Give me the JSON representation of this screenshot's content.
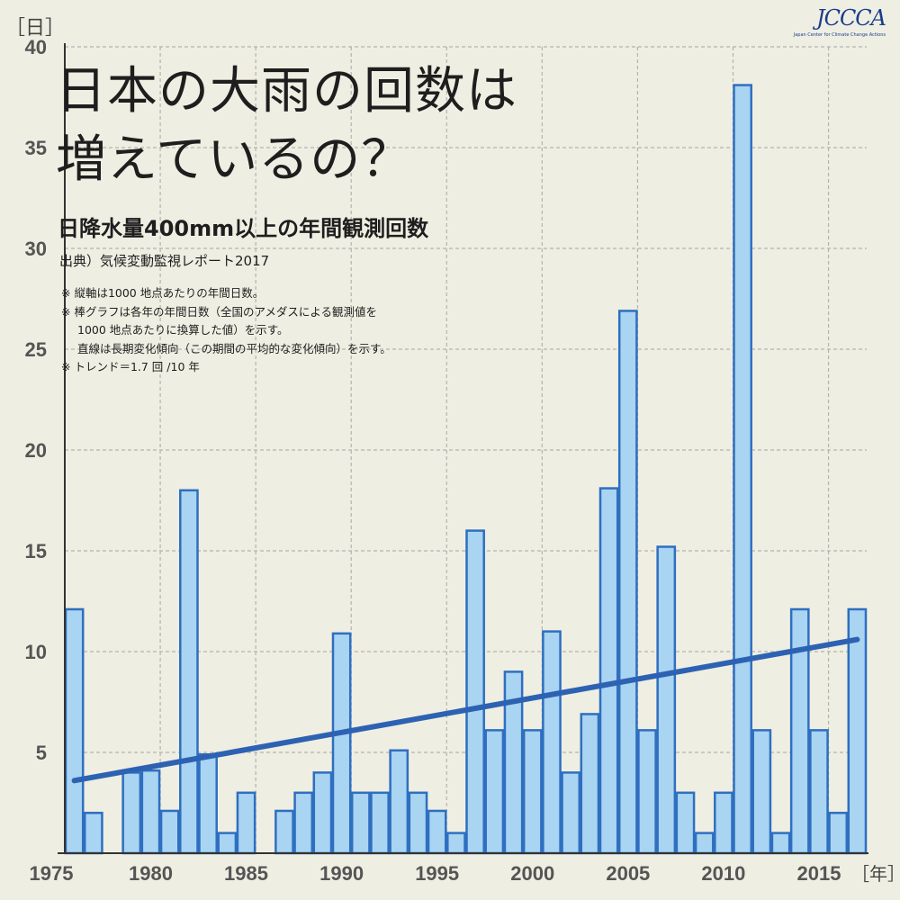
{
  "logo": {
    "text": "JCCCA",
    "subtext": "Japan Center for Climate Change Actions"
  },
  "header": {
    "title_line1": "日本の大雨の回数は",
    "title_line2": "増えているの？",
    "subtitle": "日降水量400mm以上の年間観測回数",
    "source": "出典）気候変動監視レポート2017",
    "notes": [
      "※ 縦軸は1000 地点あたりの年間日数。",
      "※ 棒グラフは各年の年間日数（全国のアメダスによる観測値を",
      "1000 地点あたりに換算した値）を示す。",
      "直線は長期変化傾向（この期間の平均的な変化傾向）を示す。",
      "※ トレンド＝1.7 回 /10 年"
    ]
  },
  "chart_data": {
    "type": "bar",
    "title": "日降水量400mm以上の年間観測回数",
    "ylabel": "［日］",
    "xlabel": "［年］",
    "ylim": [
      0,
      40
    ],
    "xlim": [
      1975,
      2017
    ],
    "yticks": [
      5,
      10,
      15,
      20,
      25,
      30,
      35,
      40
    ],
    "xticks": [
      1975,
      1980,
      1985,
      1990,
      1995,
      2000,
      2005,
      2010,
      2015
    ],
    "grid": true,
    "colors": {
      "bar_fill": "#a9d4f2",
      "bar_stroke": "#2e6fc0",
      "trend": "#2d62b3",
      "grid": "#b3b3b3",
      "axis_text": "#555555"
    },
    "years": [
      1976,
      1977,
      1978,
      1979,
      1980,
      1981,
      1982,
      1983,
      1984,
      1985,
      1986,
      1987,
      1988,
      1989,
      1990,
      1991,
      1992,
      1993,
      1994,
      1995,
      1996,
      1997,
      1998,
      1999,
      2000,
      2001,
      2002,
      2003,
      2004,
      2005,
      2006,
      2007,
      2008,
      2009,
      2010,
      2011,
      2012,
      2013,
      2014,
      2015,
      2016,
      2017
    ],
    "values": [
      12.1,
      2.0,
      0,
      4.0,
      4.1,
      2.1,
      18.0,
      4.9,
      1.0,
      3.0,
      0,
      2.1,
      3.0,
      4.0,
      10.9,
      3.0,
      3.0,
      5.1,
      3.0,
      2.1,
      1.0,
      16.0,
      6.1,
      9.0,
      6.1,
      11.0,
      4.0,
      6.9,
      18.1,
      26.9,
      6.1,
      15.2,
      3.0,
      1.0,
      3.0,
      38.1,
      6.1,
      1.0,
      12.1,
      6.1,
      2.0,
      12.1
    ],
    "trend": {
      "start": {
        "x": 1976,
        "y": 3.6
      },
      "end": {
        "x": 2017,
        "y": 10.6
      }
    }
  }
}
